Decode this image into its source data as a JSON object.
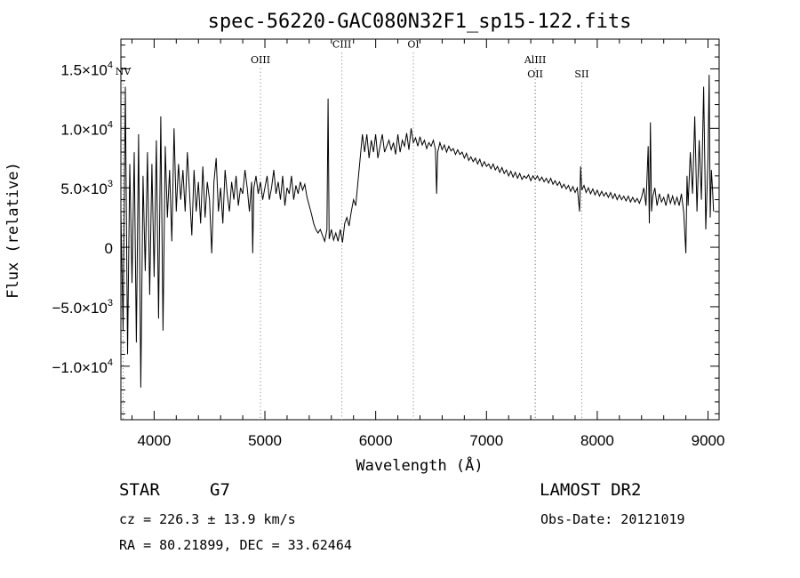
{
  "chart_data": {
    "type": "line",
    "title": "spec-56220-GAC080N32F1_sp15-122.fits",
    "xlabel": "Wavelength (Å)",
    "ylabel": "Flux (relative)",
    "xlim": [
      3700,
      9100
    ],
    "ylim": [
      -14500,
      17500
    ],
    "x_ticks": [
      4000,
      5000,
      6000,
      7000,
      8000,
      9000
    ],
    "y_ticks": [
      {
        "value": -10000,
        "mantissa": "−1.0×10",
        "exp": "4"
      },
      {
        "value": -5000,
        "mantissa": "−5.0×10",
        "exp": "3"
      },
      {
        "value": 0,
        "mantissa": "0",
        "exp": ""
      },
      {
        "value": 5000,
        "mantissa": "5.0×10",
        "exp": "3"
      },
      {
        "value": 10000,
        "mantissa": "1.0×10",
        "exp": "4"
      },
      {
        "value": 15000,
        "mantissa": "1.5×10",
        "exp": "4"
      }
    ],
    "spectral_lines": [
      {
        "label": "NV",
        "x": 3720,
        "label_y": 14500
      },
      {
        "label": "OIII",
        "x": 4960,
        "label_y": 15500
      },
      {
        "label": "CIII",
        "x": 5695,
        "label_y": 16800
      },
      {
        "label": "OI",
        "x": 6340,
        "label_y": 16800
      },
      {
        "label": "AlIII",
        "x": 7440,
        "label_y": 15500
      },
      {
        "label": "OII",
        "x": 7440,
        "label_y": 14300
      },
      {
        "label": "SII",
        "x": 7860,
        "label_y": 14300
      }
    ],
    "series": [
      {
        "values": [
          [
            3700,
            3000
          ],
          [
            3720,
            -7000
          ],
          [
            3740,
            13500
          ],
          [
            3760,
            -9000
          ],
          [
            3780,
            7000
          ],
          [
            3800,
            -3000
          ],
          [
            3820,
            8000
          ],
          [
            3840,
            -8000
          ],
          [
            3860,
            9500
          ],
          [
            3880,
            -11800
          ],
          [
            3900,
            6000
          ],
          [
            3920,
            -2000
          ],
          [
            3940,
            8000
          ],
          [
            3960,
            -4000
          ],
          [
            3980,
            7000
          ],
          [
            4000,
            -2500
          ],
          [
            4020,
            9000
          ],
          [
            4040,
            -6000
          ],
          [
            4060,
            11000
          ],
          [
            4080,
            -7000
          ],
          [
            4100,
            8500
          ],
          [
            4120,
            2500
          ],
          [
            4140,
            6500
          ],
          [
            4160,
            500
          ],
          [
            4180,
            10000
          ],
          [
            4200,
            3000
          ],
          [
            4220,
            7000
          ],
          [
            4240,
            4000
          ],
          [
            4260,
            6500
          ],
          [
            4280,
            3000
          ],
          [
            4300,
            8000
          ],
          [
            4320,
            4500
          ],
          [
            4340,
            1000
          ],
          [
            4360,
            6500
          ],
          [
            4380,
            3000
          ],
          [
            4400,
            5500
          ],
          [
            4420,
            2000
          ],
          [
            4440,
            6800
          ],
          [
            4460,
            2500
          ],
          [
            4480,
            5500
          ],
          [
            4500,
            4000
          ],
          [
            4520,
            -500
          ],
          [
            4540,
            5500
          ],
          [
            4560,
            7500
          ],
          [
            4580,
            3000
          ],
          [
            4600,
            5000
          ],
          [
            4620,
            2000
          ],
          [
            4640,
            6500
          ],
          [
            4660,
            4500
          ],
          [
            4680,
            3000
          ],
          [
            4700,
            5500
          ],
          [
            4720,
            4000
          ],
          [
            4740,
            6000
          ],
          [
            4760,
            3500
          ],
          [
            4780,
            5000
          ],
          [
            4800,
            4500
          ],
          [
            4820,
            6500
          ],
          [
            4840,
            5000
          ],
          [
            4860,
            3000
          ],
          [
            4880,
            5500
          ],
          [
            4890,
            -500
          ],
          [
            4900,
            5000
          ],
          [
            4920,
            6000
          ],
          [
            4940,
            4500
          ],
          [
            4960,
            5500
          ],
          [
            4980,
            4000
          ],
          [
            5000,
            5000
          ],
          [
            5020,
            6000
          ],
          [
            5040,
            4000
          ],
          [
            5060,
            5000
          ],
          [
            5080,
            6500
          ],
          [
            5100,
            4500
          ],
          [
            5120,
            5500
          ],
          [
            5140,
            4000
          ],
          [
            5160,
            6000
          ],
          [
            5180,
            3500
          ],
          [
            5200,
            5000
          ],
          [
            5220,
            4500
          ],
          [
            5240,
            6000
          ],
          [
            5260,
            4000
          ],
          [
            5280,
            5200
          ],
          [
            5300,
            4500
          ],
          [
            5320,
            5500
          ],
          [
            5340,
            4800
          ],
          [
            5360,
            5300
          ],
          [
            5380,
            4200
          ],
          [
            5400,
            3500
          ],
          [
            5420,
            2800
          ],
          [
            5440,
            2000
          ],
          [
            5460,
            1500
          ],
          [
            5480,
            1200
          ],
          [
            5500,
            1500
          ],
          [
            5520,
            1000
          ],
          [
            5540,
            500
          ],
          [
            5560,
            1500
          ],
          [
            5570,
            12500
          ],
          [
            5580,
            700
          ],
          [
            5600,
            1500
          ],
          [
            5620,
            600
          ],
          [
            5640,
            1200
          ],
          [
            5660,
            500
          ],
          [
            5680,
            1500
          ],
          [
            5700,
            400
          ],
          [
            5720,
            2000
          ],
          [
            5740,
            2500
          ],
          [
            5760,
            1800
          ],
          [
            5780,
            3000
          ],
          [
            5800,
            4000
          ],
          [
            5820,
            3500
          ],
          [
            5840,
            5500
          ],
          [
            5860,
            7500
          ],
          [
            5880,
            9500
          ],
          [
            5900,
            8000
          ],
          [
            5920,
            9500
          ],
          [
            5940,
            7500
          ],
          [
            5960,
            9000
          ],
          [
            5980,
            8000
          ],
          [
            6000,
            9500
          ],
          [
            6020,
            7500
          ],
          [
            6040,
            8500
          ],
          [
            6060,
            9500
          ],
          [
            6080,
            8000
          ],
          [
            6100,
            8500
          ],
          [
            6120,
            9000
          ],
          [
            6140,
            8200
          ],
          [
            6160,
            8800
          ],
          [
            6180,
            7800
          ],
          [
            6200,
            9500
          ],
          [
            6220,
            8000
          ],
          [
            6240,
            9000
          ],
          [
            6260,
            8500
          ],
          [
            6280,
            9600
          ],
          [
            6300,
            8200
          ],
          [
            6320,
            10000
          ],
          [
            6340,
            8800
          ],
          [
            6360,
            9200
          ],
          [
            6380,
            8500
          ],
          [
            6400,
            9300
          ],
          [
            6420,
            8600
          ],
          [
            6440,
            9000
          ],
          [
            6460,
            8300
          ],
          [
            6480,
            8800
          ],
          [
            6500,
            8500
          ],
          [
            6520,
            9000
          ],
          [
            6540,
            8200
          ],
          [
            6550,
            4500
          ],
          [
            6560,
            8000
          ],
          [
            6580,
            8800
          ],
          [
            6600,
            8200
          ],
          [
            6620,
            8600
          ],
          [
            6640,
            8000
          ],
          [
            6660,
            8500
          ],
          [
            6680,
            8100
          ],
          [
            6700,
            8300
          ],
          [
            6720,
            7800
          ],
          [
            6740,
            8200
          ],
          [
            6760,
            7800
          ],
          [
            6780,
            8000
          ],
          [
            6800,
            7500
          ],
          [
            6820,
            7900
          ],
          [
            6840,
            7300
          ],
          [
            6860,
            7600
          ],
          [
            6880,
            7200
          ],
          [
            6900,
            7500
          ],
          [
            6920,
            7000
          ],
          [
            6940,
            7400
          ],
          [
            6960,
            6800
          ],
          [
            6980,
            7200
          ],
          [
            7000,
            6800
          ],
          [
            7020,
            7000
          ],
          [
            7040,
            6600
          ],
          [
            7060,
            7000
          ],
          [
            7080,
            6500
          ],
          [
            7100,
            6800
          ],
          [
            7120,
            6300
          ],
          [
            7140,
            6700
          ],
          [
            7160,
            6200
          ],
          [
            7180,
            6500
          ],
          [
            7200,
            6000
          ],
          [
            7220,
            6400
          ],
          [
            7240,
            5900
          ],
          [
            7260,
            6300
          ],
          [
            7280,
            5800
          ],
          [
            7300,
            6200
          ],
          [
            7320,
            5700
          ],
          [
            7340,
            6000
          ],
          [
            7360,
            5800
          ],
          [
            7380,
            6100
          ],
          [
            7400,
            5600
          ],
          [
            7420,
            6000
          ],
          [
            7440,
            5700
          ],
          [
            7460,
            6000
          ],
          [
            7480,
            5600
          ],
          [
            7500,
            5900
          ],
          [
            7520,
            5500
          ],
          [
            7540,
            5800
          ],
          [
            7560,
            5400
          ],
          [
            7580,
            5800
          ],
          [
            7600,
            5300
          ],
          [
            7620,
            5600
          ],
          [
            7640,
            5200
          ],
          [
            7660,
            5500
          ],
          [
            7680,
            5000
          ],
          [
            7700,
            5300
          ],
          [
            7720,
            4900
          ],
          [
            7740,
            5200
          ],
          [
            7760,
            4700
          ],
          [
            7780,
            5100
          ],
          [
            7800,
            4600
          ],
          [
            7820,
            5000
          ],
          [
            7840,
            3000
          ],
          [
            7850,
            6800
          ],
          [
            7860,
            4800
          ],
          [
            7880,
            5200
          ],
          [
            7900,
            4600
          ],
          [
            7920,
            5000
          ],
          [
            7940,
            4500
          ],
          [
            7960,
            4900
          ],
          [
            7980,
            4400
          ],
          [
            8000,
            4800
          ],
          [
            8020,
            4300
          ],
          [
            8040,
            4700
          ],
          [
            8060,
            4300
          ],
          [
            8080,
            4600
          ],
          [
            8100,
            4200
          ],
          [
            8120,
            4600
          ],
          [
            8140,
            4100
          ],
          [
            8160,
            4500
          ],
          [
            8180,
            4000
          ],
          [
            8200,
            4400
          ],
          [
            8220,
            4000
          ],
          [
            8240,
            4300
          ],
          [
            8260,
            3900
          ],
          [
            8280,
            4300
          ],
          [
            8300,
            3800
          ],
          [
            8320,
            4200
          ],
          [
            8340,
            3800
          ],
          [
            8360,
            4100
          ],
          [
            8380,
            3700
          ],
          [
            8400,
            4200
          ],
          [
            8420,
            5000
          ],
          [
            8440,
            3500
          ],
          [
            8460,
            8500
          ],
          [
            8470,
            2000
          ],
          [
            8480,
            10500
          ],
          [
            8490,
            3000
          ],
          [
            8500,
            4200
          ],
          [
            8520,
            5000
          ],
          [
            8540,
            3500
          ],
          [
            8560,
            4500
          ],
          [
            8580,
            3800
          ],
          [
            8600,
            4200
          ],
          [
            8620,
            3500
          ],
          [
            8640,
            4500
          ],
          [
            8660,
            3700
          ],
          [
            8680,
            4300
          ],
          [
            8700,
            3600
          ],
          [
            8720,
            4200
          ],
          [
            8740,
            3500
          ],
          [
            8760,
            4500
          ],
          [
            8780,
            3000
          ],
          [
            8800,
            -500
          ],
          [
            8810,
            6000
          ],
          [
            8820,
            3500
          ],
          [
            8840,
            8000
          ],
          [
            8860,
            4500
          ],
          [
            8880,
            11000
          ],
          [
            8900,
            3000
          ],
          [
            8920,
            9000
          ],
          [
            8940,
            4000
          ],
          [
            8960,
            13500
          ],
          [
            8980,
            1500
          ],
          [
            9000,
            7500
          ],
          [
            9010,
            14500
          ],
          [
            9020,
            2500
          ],
          [
            9030,
            6500
          ],
          [
            9040,
            5000
          ],
          [
            9050,
            3000
          ]
        ]
      }
    ]
  },
  "info": {
    "class_label": "STAR",
    "subclass_label": "G7",
    "survey": "LAMOST DR2",
    "cz": "cz = 226.3 ± 13.9 km/s",
    "obs_date": "Obs-Date: 20121019",
    "radec": "RA =  80.21899, DEC =  33.62464"
  }
}
